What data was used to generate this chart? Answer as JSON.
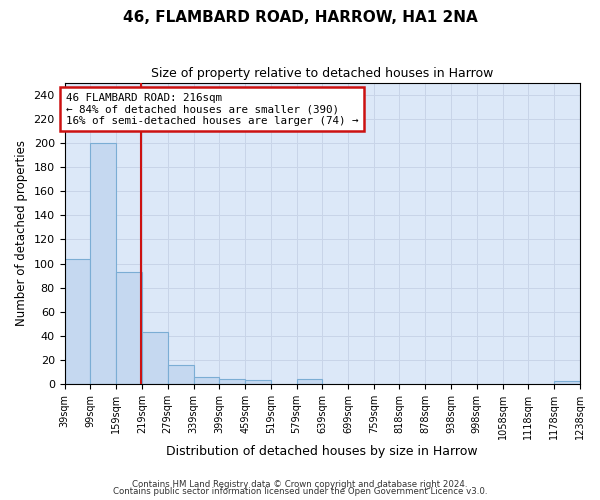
{
  "title": "46, FLAMBARD ROAD, HARROW, HA1 2NA",
  "subtitle": "Size of property relative to detached houses in Harrow",
  "xlabel": "Distribution of detached houses by size in Harrow",
  "ylabel": "Number of detached properties",
  "bar_color": "#c5d8f0",
  "bar_edge_color": "#7badd4",
  "bin_edges": [
    39,
    99,
    159,
    219,
    279,
    339,
    399,
    459,
    519,
    579,
    639,
    699,
    759,
    818,
    878,
    938,
    998,
    1058,
    1118,
    1178,
    1238
  ],
  "bar_values": [
    104,
    200,
    93,
    43,
    16,
    6,
    4,
    3,
    0,
    4,
    0,
    0,
    0,
    0,
    0,
    0,
    0,
    0,
    0,
    2
  ],
  "tick_labels": [
    "39sqm",
    "99sqm",
    "159sqm",
    "219sqm",
    "279sqm",
    "339sqm",
    "399sqm",
    "459sqm",
    "519sqm",
    "579sqm",
    "639sqm",
    "699sqm",
    "759sqm",
    "818sqm",
    "878sqm",
    "938sqm",
    "998sqm",
    "1058sqm",
    "1118sqm",
    "1178sqm",
    "1238sqm"
  ],
  "property_size": 216,
  "red_line_color": "#cc1111",
  "annotation_text": "46 FLAMBARD ROAD: 216sqm\n← 84% of detached houses are smaller (390)\n16% of semi-detached houses are larger (74) →",
  "annotation_box_color": "#ffffff",
  "annotation_box_edge": "#cc1111",
  "ylim": [
    0,
    250
  ],
  "yticks": [
    0,
    20,
    40,
    60,
    80,
    100,
    120,
    140,
    160,
    180,
    200,
    220,
    240
  ],
  "grid_color": "#c8d4e8",
  "background_color": "#dce8f8",
  "fig_background_color": "#ffffff",
  "footer_line1": "Contains HM Land Registry data © Crown copyright and database right 2024.",
  "footer_line2": "Contains public sector information licensed under the Open Government Licence v3.0."
}
